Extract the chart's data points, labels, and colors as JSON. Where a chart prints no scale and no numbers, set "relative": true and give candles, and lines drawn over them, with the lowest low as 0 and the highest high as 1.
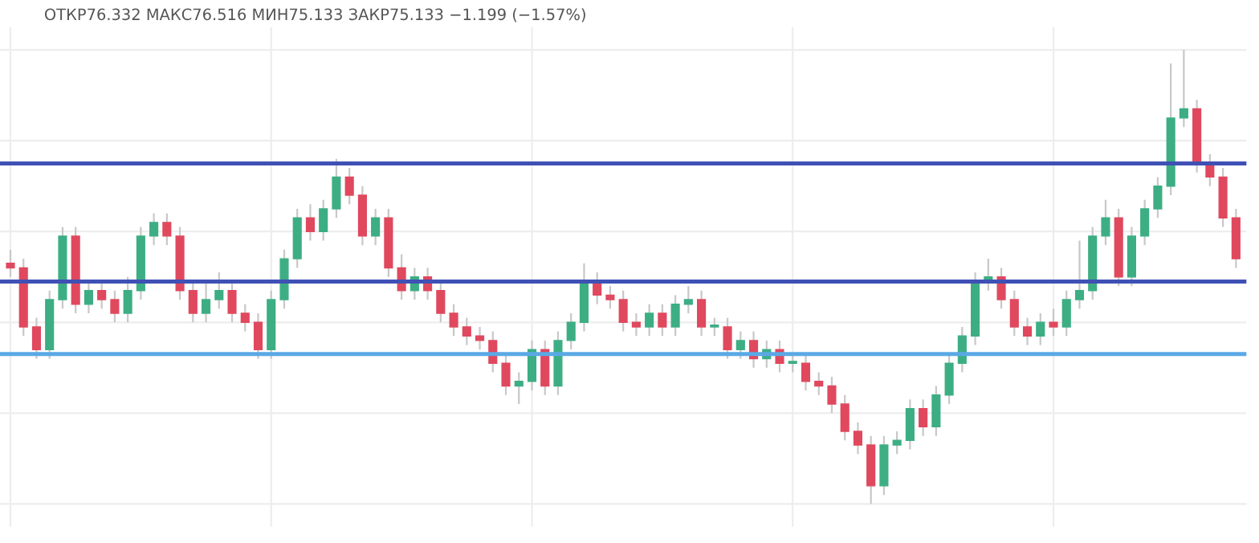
{
  "chart_data": {
    "type": "candlestick",
    "relative": true,
    "grid": true,
    "annotations": [
      "ОТКР76.332 МАКС76.516 МИН75.133 ЗАКР75.133 −1.199 (−1.57%)"
    ],
    "categories": [
      null,
      null,
      null,
      null,
      null,
      null,
      null,
      null,
      null,
      null,
      null,
      null,
      null,
      null,
      null,
      null,
      null,
      null,
      null,
      null,
      null,
      null,
      null,
      null,
      null,
      null,
      null,
      null,
      null,
      null,
      null,
      null,
      null,
      null,
      null,
      null,
      null,
      null,
      null,
      null,
      null,
      null,
      null,
      null,
      null,
      null,
      null,
      null,
      null,
      null,
      null,
      null,
      null,
      null,
      null,
      null,
      null,
      null,
      null,
      null,
      null,
      null,
      null,
      null,
      null,
      null,
      null,
      null,
      null,
      null,
      null,
      null,
      null,
      null,
      null,
      null,
      null,
      null,
      null,
      null,
      null,
      null,
      null,
      null,
      null,
      null,
      null,
      null,
      null,
      null,
      null,
      null,
      null,
      null,
      null
    ],
    "ohlc": [
      [
        0.53,
        0.56,
        0.5,
        0.52
      ],
      [
        0.52,
        0.54,
        0.37,
        0.39
      ],
      [
        0.39,
        0.41,
        0.32,
        0.34
      ],
      [
        0.34,
        0.47,
        0.32,
        0.45
      ],
      [
        0.45,
        0.61,
        0.43,
        0.59
      ],
      [
        0.59,
        0.61,
        0.42,
        0.44
      ],
      [
        0.44,
        0.49,
        0.42,
        0.47
      ],
      [
        0.47,
        0.49,
        0.43,
        0.45
      ],
      [
        0.45,
        0.47,
        0.4,
        0.42
      ],
      [
        0.42,
        0.5,
        0.4,
        0.47
      ],
      [
        0.47,
        0.61,
        0.45,
        0.59
      ],
      [
        0.59,
        0.64,
        0.57,
        0.62
      ],
      [
        0.62,
        0.64,
        0.57,
        0.59
      ],
      [
        0.59,
        0.61,
        0.45,
        0.47
      ],
      [
        0.47,
        0.49,
        0.4,
        0.42
      ],
      [
        0.42,
        0.49,
        0.4,
        0.45
      ],
      [
        0.45,
        0.51,
        0.43,
        0.47
      ],
      [
        0.47,
        0.49,
        0.4,
        0.42
      ],
      [
        0.42,
        0.44,
        0.38,
        0.4
      ],
      [
        0.4,
        0.42,
        0.32,
        0.34
      ],
      [
        0.34,
        0.47,
        0.32,
        0.45
      ],
      [
        0.45,
        0.56,
        0.43,
        0.54
      ],
      [
        0.54,
        0.65,
        0.52,
        0.63
      ],
      [
        0.63,
        0.66,
        0.58,
        0.6
      ],
      [
        0.6,
        0.67,
        0.58,
        0.65
      ],
      [
        0.65,
        0.76,
        0.63,
        0.72
      ],
      [
        0.72,
        0.74,
        0.66,
        0.68
      ],
      [
        0.68,
        0.7,
        0.57,
        0.59
      ],
      [
        0.59,
        0.65,
        0.57,
        0.63
      ],
      [
        0.63,
        0.65,
        0.5,
        0.52
      ],
      [
        0.52,
        0.55,
        0.45,
        0.47
      ],
      [
        0.47,
        0.52,
        0.45,
        0.5
      ],
      [
        0.5,
        0.52,
        0.45,
        0.47
      ],
      [
        0.47,
        0.49,
        0.4,
        0.42
      ],
      [
        0.42,
        0.44,
        0.37,
        0.39
      ],
      [
        0.39,
        0.41,
        0.35,
        0.37
      ],
      [
        0.37,
        0.39,
        0.34,
        0.36
      ],
      [
        0.36,
        0.38,
        0.29,
        0.31
      ],
      [
        0.31,
        0.33,
        0.24,
        0.26
      ],
      [
        0.26,
        0.29,
        0.22,
        0.27
      ],
      [
        0.27,
        0.36,
        0.25,
        0.34
      ],
      [
        0.34,
        0.36,
        0.24,
        0.26
      ],
      [
        0.26,
        0.38,
        0.24,
        0.36
      ],
      [
        0.36,
        0.42,
        0.34,
        0.4
      ],
      [
        0.4,
        0.53,
        0.38,
        0.49
      ],
      [
        0.49,
        0.51,
        0.44,
        0.46
      ],
      [
        0.46,
        0.48,
        0.43,
        0.45
      ],
      [
        0.45,
        0.47,
        0.38,
        0.4
      ],
      [
        0.4,
        0.42,
        0.37,
        0.39
      ],
      [
        0.39,
        0.44,
        0.37,
        0.42
      ],
      [
        0.42,
        0.44,
        0.37,
        0.39
      ],
      [
        0.39,
        0.46,
        0.37,
        0.44
      ],
      [
        0.44,
        0.48,
        0.42,
        0.45
      ],
      [
        0.45,
        0.47,
        0.37,
        0.39
      ],
      [
        0.39,
        0.41,
        0.37,
        0.39
      ],
      [
        0.39,
        0.41,
        0.32,
        0.34
      ],
      [
        0.34,
        0.38,
        0.32,
        0.36
      ],
      [
        0.36,
        0.38,
        0.3,
        0.32
      ],
      [
        0.32,
        0.36,
        0.3,
        0.34
      ],
      [
        0.34,
        0.36,
        0.29,
        0.31
      ],
      [
        0.31,
        0.33,
        0.29,
        0.31
      ],
      [
        0.31,
        0.33,
        0.25,
        0.27
      ],
      [
        0.27,
        0.29,
        0.24,
        0.26
      ],
      [
        0.26,
        0.28,
        0.2,
        0.22
      ],
      [
        0.22,
        0.24,
        0.14,
        0.16
      ],
      [
        0.16,
        0.18,
        0.11,
        0.13
      ],
      [
        0.13,
        0.15,
        0.0,
        0.04
      ],
      [
        0.04,
        0.15,
        0.02,
        0.13
      ],
      [
        0.13,
        0.16,
        0.11,
        0.14
      ],
      [
        0.14,
        0.23,
        0.12,
        0.21
      ],
      [
        0.21,
        0.23,
        0.15,
        0.17
      ],
      [
        0.17,
        0.26,
        0.15,
        0.24
      ],
      [
        0.24,
        0.33,
        0.22,
        0.31
      ],
      [
        0.31,
        0.39,
        0.29,
        0.37
      ],
      [
        0.37,
        0.51,
        0.35,
        0.49
      ],
      [
        0.49,
        0.54,
        0.47,
        0.5
      ],
      [
        0.5,
        0.52,
        0.43,
        0.45
      ],
      [
        0.45,
        0.47,
        0.37,
        0.39
      ],
      [
        0.39,
        0.41,
        0.35,
        0.37
      ],
      [
        0.37,
        0.42,
        0.35,
        0.4
      ],
      [
        0.4,
        0.43,
        0.37,
        0.39
      ],
      [
        0.39,
        0.47,
        0.37,
        0.45
      ],
      [
        0.45,
        0.58,
        0.43,
        0.47
      ],
      [
        0.47,
        0.61,
        0.45,
        0.59
      ],
      [
        0.59,
        0.67,
        0.57,
        0.63
      ],
      [
        0.63,
        0.65,
        0.48,
        0.5
      ],
      [
        0.5,
        0.61,
        0.48,
        0.59
      ],
      [
        0.59,
        0.67,
        0.57,
        0.65
      ],
      [
        0.65,
        0.72,
        0.63,
        0.7
      ],
      [
        0.7,
        0.97,
        0.68,
        0.85
      ],
      [
        0.85,
        1.0,
        0.83,
        0.87
      ],
      [
        0.87,
        0.89,
        0.73,
        0.75
      ],
      [
        0.75,
        0.77,
        0.7,
        0.72
      ],
      [
        0.72,
        0.74,
        0.61,
        0.63
      ],
      [
        0.63,
        0.65,
        0.52,
        0.54
      ]
    ],
    "ref_lines": [
      {
        "axis": "y",
        "value": 0.75,
        "color": "#3f51b5"
      },
      {
        "axis": "y",
        "value": 0.49,
        "color": "#3f51b5"
      },
      {
        "axis": "y",
        "value": 0.33,
        "color": "#5aa9e6"
      }
    ]
  }
}
